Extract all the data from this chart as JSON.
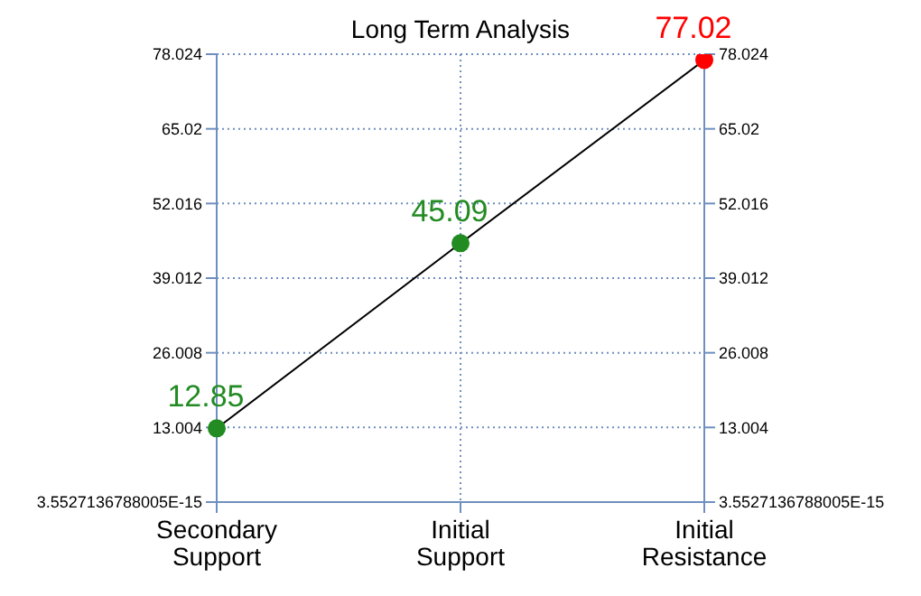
{
  "chart_data": {
    "type": "line",
    "title": "Long Term Analysis",
    "categories": [
      "Secondary Support",
      "Initial Support",
      "Initial Resistance"
    ],
    "series": [
      {
        "color": "#000000",
        "values": [
          12.85,
          45.09,
          77.02
        ],
        "colors": [
          "#228b22",
          "#228b22",
          "#ff0000"
        ]
      }
    ],
    "ylim": [
      0,
      78.024
    ],
    "yticks": [
      {
        "value": 0,
        "label": "3.5527136788005E-15"
      },
      13.004,
      26.008,
      39.012,
      52.016,
      65.02,
      78.024
    ],
    "y2lim": [
      0,
      78.024
    ],
    "y2ticks": [
      {
        "value": 0,
        "label": "3.5527136788005E-15"
      },
      13.004,
      26.008,
      39.012,
      52.016,
      65.02,
      78.024
    ],
    "data_labels": true,
    "grid": true,
    "marker": "circle",
    "legend": false
  }
}
